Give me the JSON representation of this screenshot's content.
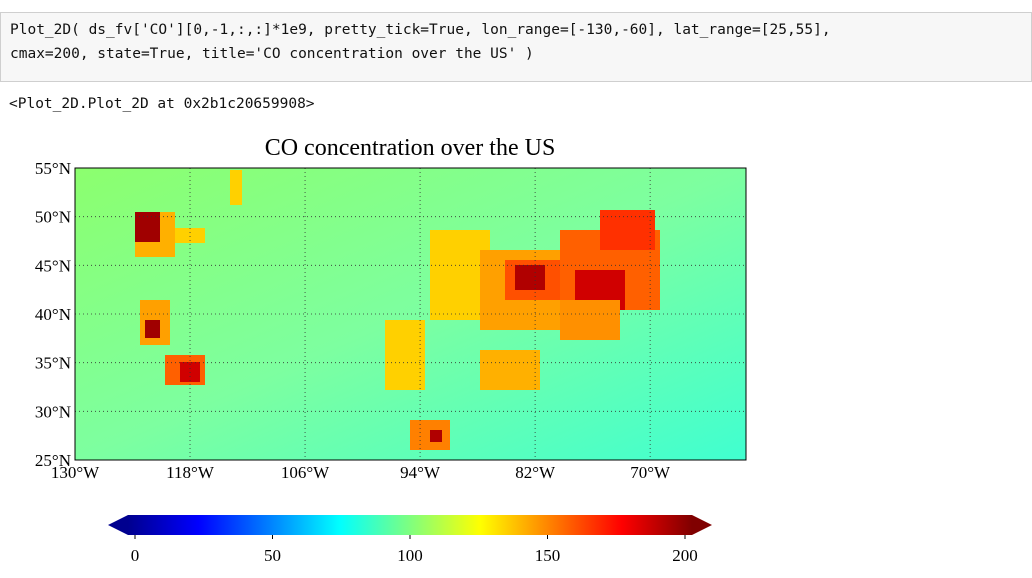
{
  "code_cell": {
    "lines": [
      "Plot_2D( ds_fv['CO'][0,-1,:,:]*1e9, pretty_tick=True, lon_range=[-130,-60], lat_range=[25,55],",
      "cmax=200, state=True, title='CO concentration over the US' )"
    ]
  },
  "output": {
    "text": "<Plot_2D.Plot_2D at 0x2b1c20659908>"
  },
  "map": {
    "title": "CO concentration over the US",
    "lon_range": [
      -130,
      -60
    ],
    "lat_range": [
      25,
      55
    ],
    "lon_ticks": [
      {
        "value": -130,
        "label": "130°W"
      },
      {
        "value": -118,
        "label": "118°W"
      },
      {
        "value": -106,
        "label": "106°W"
      },
      {
        "value": -94,
        "label": "94°W"
      },
      {
        "value": -82,
        "label": "82°W"
      },
      {
        "value": -70,
        "label": "70°W"
      }
    ],
    "lat_ticks": [
      {
        "value": 55,
        "label": "55°N"
      },
      {
        "value": 50,
        "label": "50°N"
      },
      {
        "value": 45,
        "label": "45°N"
      },
      {
        "value": 40,
        "label": "40°N"
      },
      {
        "value": 35,
        "label": "35°N"
      },
      {
        "value": 30,
        "label": "30°N"
      },
      {
        "value": 25,
        "label": "25°N"
      }
    ]
  },
  "colorbar": {
    "lim": [
      0,
      200
    ],
    "ticks": [
      0,
      50,
      100,
      150,
      200
    ]
  }
}
